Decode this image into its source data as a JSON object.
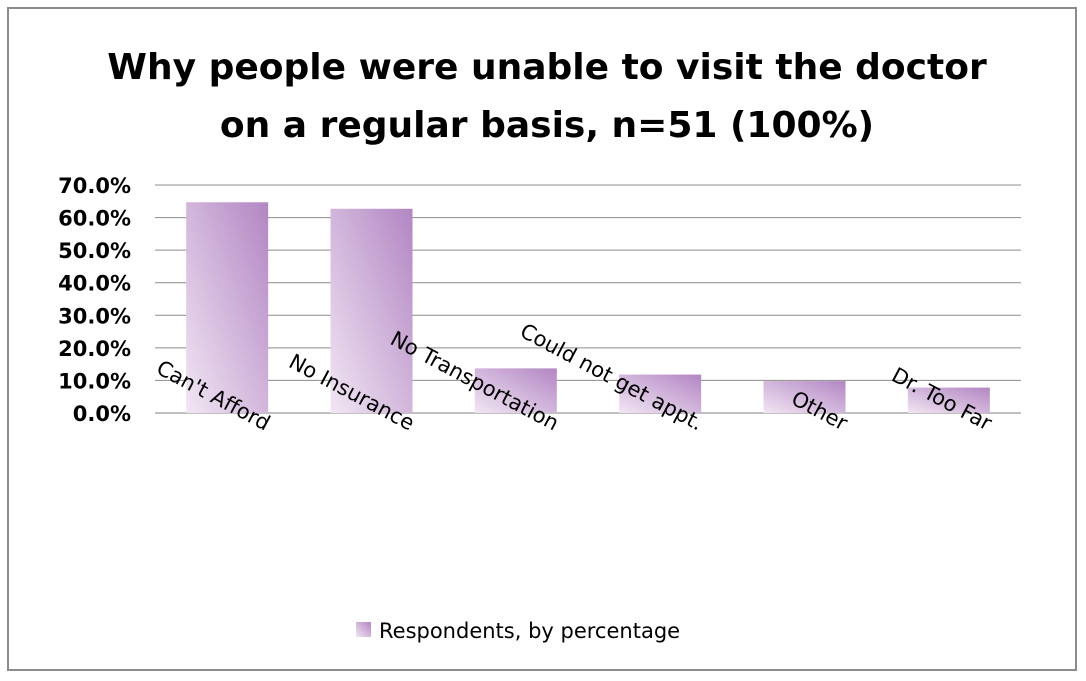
{
  "chart_data": {
    "type": "bar",
    "title": "Why people were unable to visit the doctor on a regular basis, n=51 (100%)",
    "title_lines": [
      "Why people were unable to visit the doctor",
      "on a regular basis, n=51 (100%)"
    ],
    "categories": [
      "Can't Afford",
      "No Insurance",
      "No Transportation",
      "Could not get appt.",
      "Other",
      "Dr. Too Far"
    ],
    "series": [
      {
        "name": "Respondents, by percentage",
        "values": [
          64.7,
          62.7,
          13.7,
          11.8,
          9.8,
          7.8
        ],
        "color": "#b98cc8"
      }
    ],
    "yticks": [
      "0.0%",
      "10.0%",
      "20.0%",
      "30.0%",
      "40.0%",
      "50.0%",
      "60.0%",
      "70.0%"
    ],
    "ylim": [
      0,
      70
    ],
    "xlabel": "",
    "ylabel": "",
    "grid": true,
    "legend_position": "bottom"
  }
}
